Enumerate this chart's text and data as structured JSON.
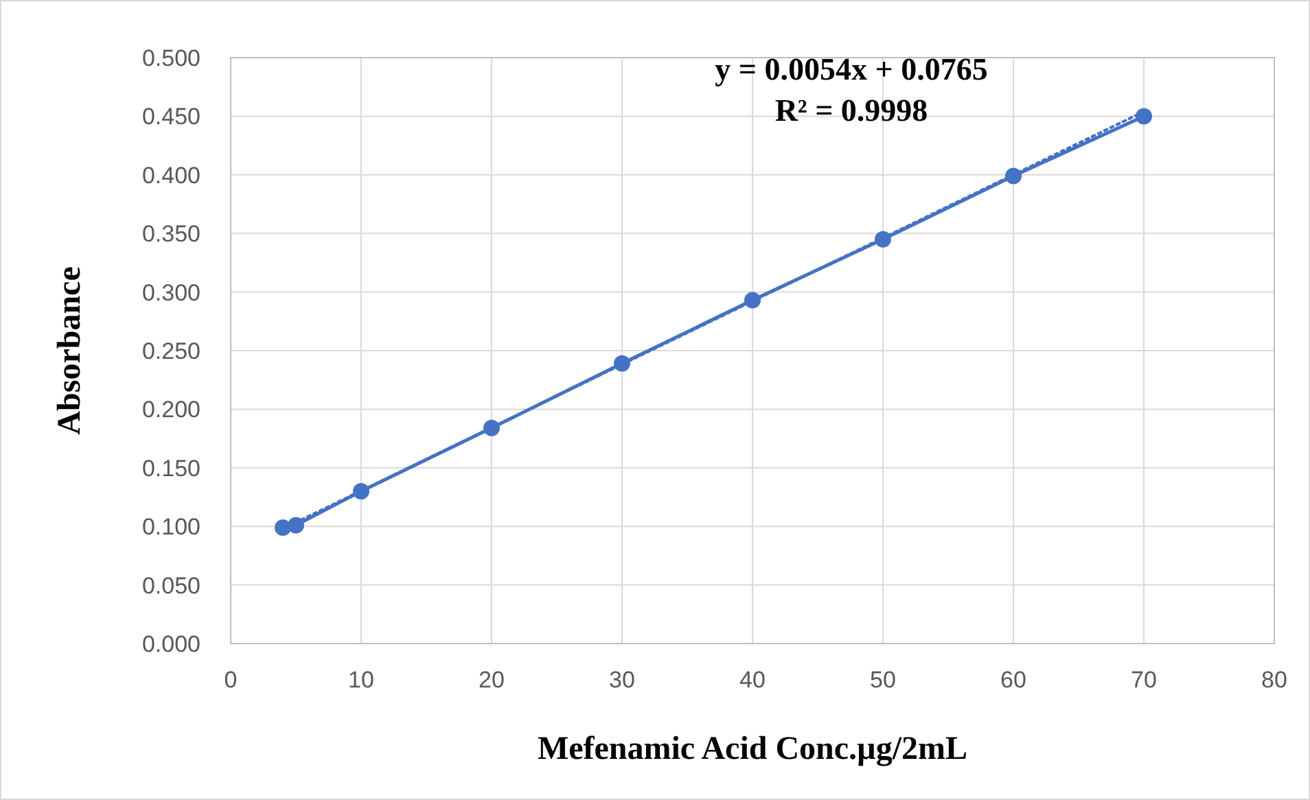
{
  "chart_data": {
    "type": "line",
    "xlabel": "Mefenamic Acid Conc.µg/2mL",
    "ylabel": "Absorbance",
    "annotations": [
      "y = 0.0054x + 0.0765",
      "R² = 0.9998"
    ],
    "series": [
      {
        "color": "#4472c4",
        "x": [
          4,
          5,
          10,
          20,
          30,
          40,
          50,
          60,
          70
        ],
        "values": [
          0.099,
          0.101,
          0.13,
          0.184,
          0.239,
          0.293,
          0.345,
          0.399,
          0.45
        ],
        "marker": "circle",
        "line_style": "solid"
      },
      {
        "color": "#4472c4",
        "x": [
          4,
          70
        ],
        "values": [
          0.098,
          0.454
        ],
        "marker": "none",
        "line_style": "dotted"
      }
    ],
    "xlim": [
      0,
      80
    ],
    "xticks": [
      0,
      10,
      20,
      30,
      40,
      50,
      60,
      70,
      80
    ],
    "ylim": [
      0,
      0.5
    ],
    "yticks": [
      {
        "value": 0,
        "label": "0.000"
      },
      {
        "value": 0.05,
        "label": "0.050"
      },
      {
        "value": 0.1,
        "label": "0.100"
      },
      {
        "value": 0.15,
        "label": "0.150"
      },
      {
        "value": 0.2,
        "label": "0.200"
      },
      {
        "value": 0.25,
        "label": "0.250"
      },
      {
        "value": 0.3,
        "label": "0.300"
      },
      {
        "value": 0.35,
        "label": "0.350"
      },
      {
        "value": 0.4,
        "label": "0.400"
      },
      {
        "value": 0.45,
        "label": "0.450"
      },
      {
        "value": 0.5,
        "label": "0.500"
      }
    ],
    "grid": true
  }
}
